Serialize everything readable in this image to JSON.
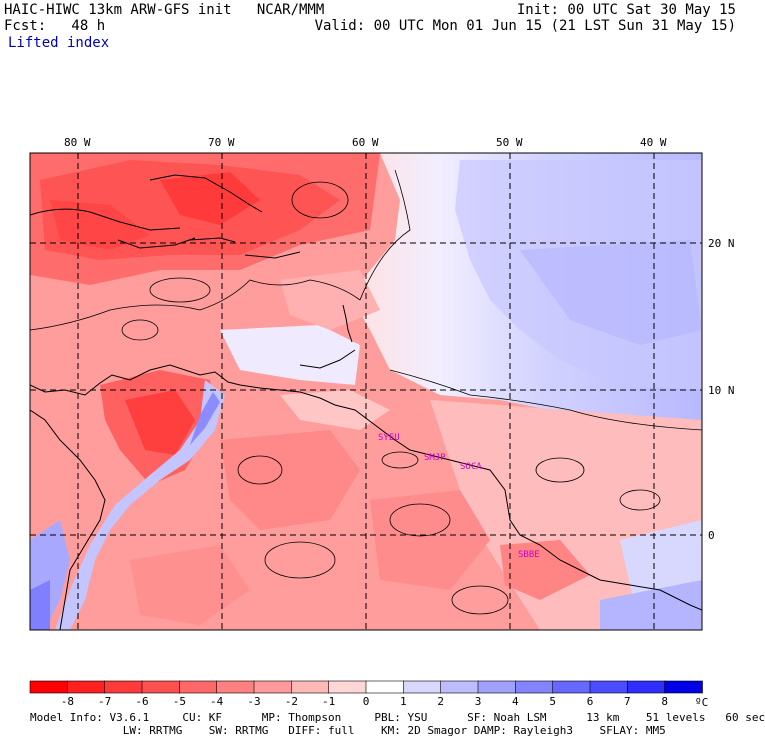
{
  "header": {
    "line1_left": "HAIC-HIWC 13km ARW-GFS init   NCAR/MMM",
    "line1_right": "Init: 00 UTC Sat 30 May 15",
    "line2_left": "Fcst:   48 h",
    "line2_right": "Valid: 00 UTC Mon 01 Jun 15 (21 LST Sun 31 May 15)",
    "field": "Lifted index"
  },
  "map": {
    "lon_labels": [
      "80 W",
      "70 W",
      "60 W",
      "50 W",
      "40 W"
    ],
    "lat_labels": [
      "20 N",
      "10 N",
      "0"
    ],
    "stations": [
      "SYEU",
      "SMJP",
      "SOCA",
      "SBBE"
    ]
  },
  "colorbar": {
    "ticks": [
      "-8",
      "-7",
      "-6",
      "-5",
      "-4",
      "-3",
      "-2",
      "-1",
      "0",
      "1",
      "2",
      "3",
      "4",
      "5",
      "6",
      "7",
      "8"
    ],
    "unit": "ºC",
    "colors": [
      "#ff0000",
      "#ff2020",
      "#ff3a3a",
      "#ff5050",
      "#ff6868",
      "#ff8080",
      "#ff9a9a",
      "#ffb8b8",
      "#ffd6d6",
      "#ffffff",
      "#d8d8ff",
      "#bcbcff",
      "#a0a0ff",
      "#8484ff",
      "#6868ff",
      "#4c4cff",
      "#2e2eff",
      "#0000e8"
    ]
  },
  "footer": {
    "line1": "Model Info: V3.6.1     CU: KF      MP: Thompson     PBL: YSU      SF: Noah LSM      13 km    51 levels   60 sec",
    "line2": "              LW: RRTMG    SW: RRTMG   DIFF: full    KM: 2D Smagor DAMP: Rayleigh3    SFLAY: MM5"
  }
}
